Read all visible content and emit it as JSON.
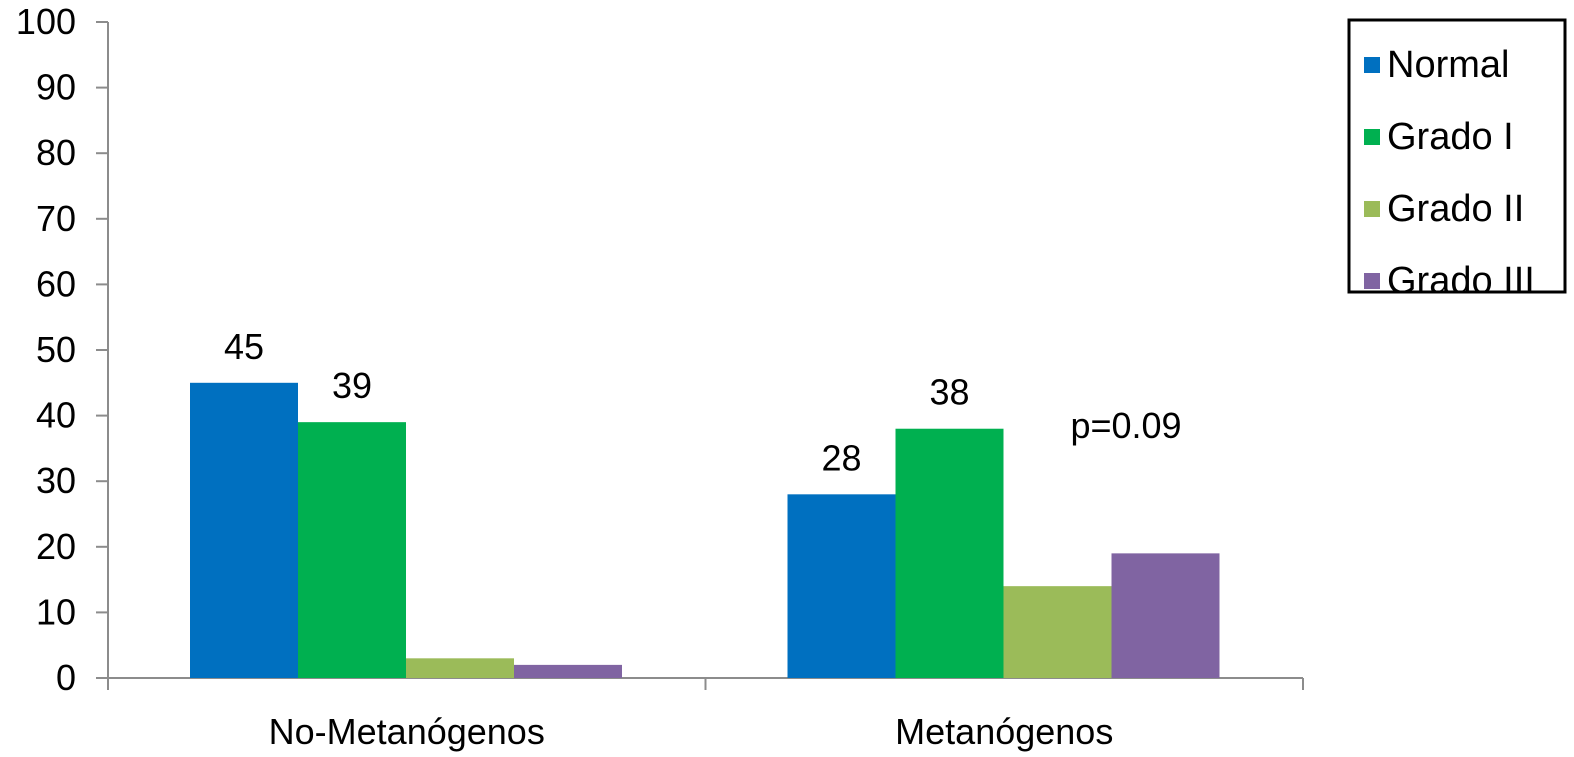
{
  "chart_data": {
    "type": "bar",
    "categories": [
      "No-Metanógenos",
      "Metanógenos"
    ],
    "series": [
      {
        "name": "Normal",
        "values": [
          45,
          28
        ],
        "color": "#0070C0",
        "labels": [
          "45",
          "28"
        ]
      },
      {
        "name": "Grado I",
        "values": [
          39,
          38
        ],
        "color": "#00B050",
        "labels": [
          "39",
          "38"
        ]
      },
      {
        "name": "Grado II",
        "values": [
          3,
          14
        ],
        "color": "#9BBB59",
        "labels": [
          "",
          ""
        ]
      },
      {
        "name": "Grado III",
        "values": [
          2,
          19
        ],
        "color": "#8064A2",
        "labels": [
          "",
          ""
        ]
      }
    ],
    "ylim": [
      0,
      100
    ],
    "yticks": [
      "0",
      "10",
      "20",
      "30",
      "40",
      "50",
      "60",
      "70",
      "80",
      "90",
      "100"
    ],
    "annotation": "p=0.09",
    "legend_position": "top-right",
    "grid": false,
    "title": "",
    "xlabel": "",
    "ylabel": ""
  }
}
